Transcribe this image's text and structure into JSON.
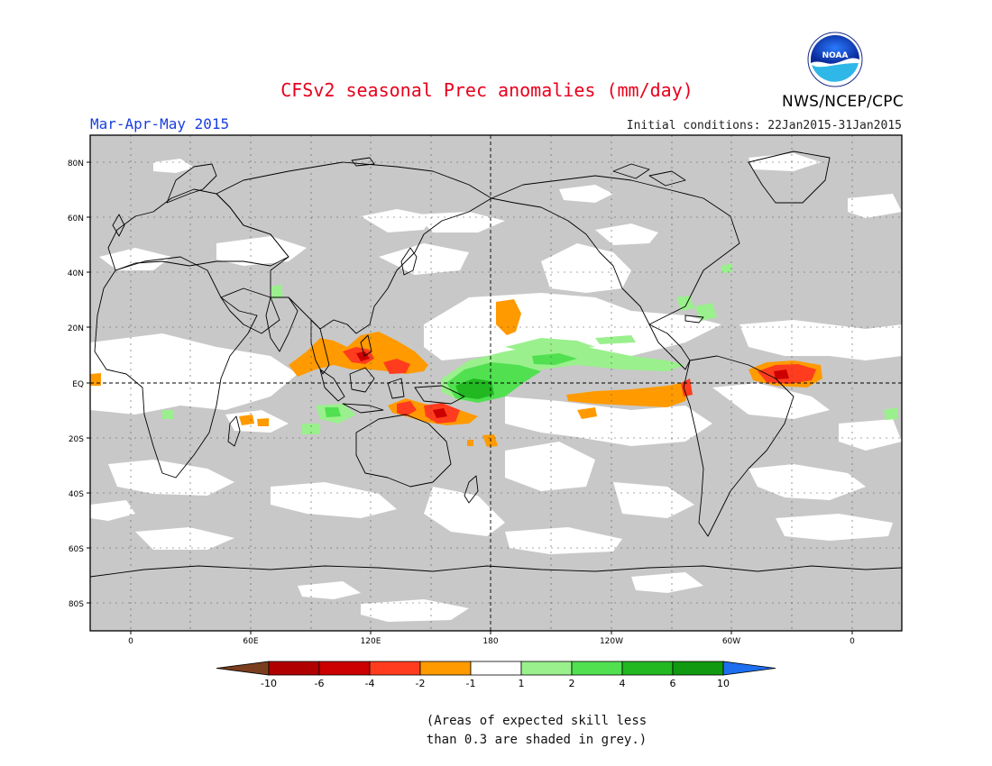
{
  "header": {
    "title": "CFSv2 seasonal Prec anomalies (mm/day)",
    "season": "Mar-Apr-May 2015",
    "initial_conditions": "Initial conditions: 22Jan2015-31Jan2015",
    "agency": "NWS/NCEP/CPC",
    "logo_text": "NOAA"
  },
  "map": {
    "lat_labels": [
      "80N",
      "60N",
      "40N",
      "20N",
      "EQ",
      "20S",
      "40S",
      "60S",
      "80S"
    ],
    "lon_labels": [
      "0",
      "60E",
      "120E",
      "180",
      "120W",
      "60W",
      "0"
    ],
    "background_color": "#c8c8c8",
    "no_anomaly_color": "#ffffff"
  },
  "colorbar": {
    "labels": [
      "-10",
      "-6",
      "-4",
      "-2",
      "-1",
      "1",
      "2",
      "4",
      "6",
      "10"
    ],
    "colors": [
      "#7a3e1e",
      "#b00000",
      "#cc0000",
      "#ff3c1e",
      "#ff9a00",
      "#ffffff",
      "#9af08c",
      "#50e050",
      "#22b822",
      "#119a11",
      "#1e6ef0"
    ]
  },
  "footnote": {
    "line1": "(Areas of expected skill less",
    "line2": "than 0.3 are shaded in grey.)"
  }
}
